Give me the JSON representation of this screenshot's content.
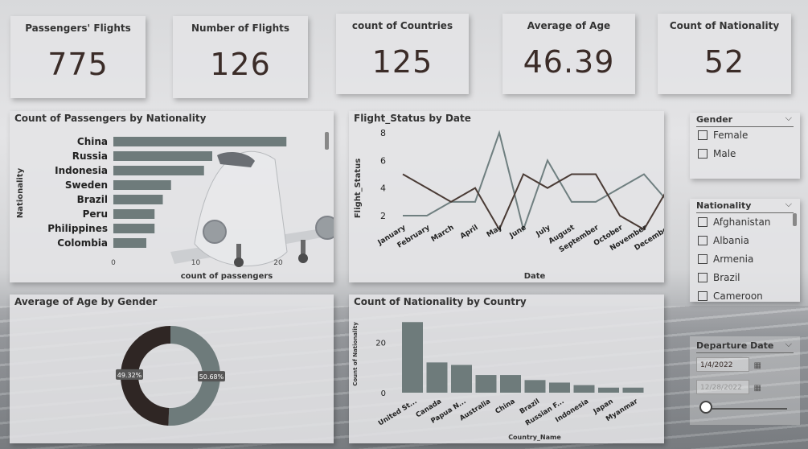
{
  "kpis": [
    {
      "title": "Passengers' Flights",
      "value": "775"
    },
    {
      "title": "Number of Flights",
      "value": "126"
    },
    {
      "title": "count of Countries",
      "value": "125"
    },
    {
      "title": "Average of Age",
      "value": "46.39"
    },
    {
      "title": "Count of Nationality",
      "value": "52"
    }
  ],
  "slicers": {
    "gender": {
      "title": "Gender",
      "options": [
        "Female",
        "Male"
      ]
    },
    "nationality": {
      "title": "Nationality",
      "options": [
        "Afghanistan",
        "Albania",
        "Armenia",
        "Brazil",
        "Cameroon"
      ]
    },
    "departure": {
      "title": "Departure Date",
      "start": "1/4/2022",
      "end": "12/28/2022"
    }
  },
  "chart_data": [
    {
      "type": "bar",
      "orientation": "horizontal",
      "title": "Count of Passengers by Nationality",
      "xlabel": "count of passengers",
      "ylabel": "Nationality",
      "categories": [
        "China",
        "Russia",
        "Indonesia",
        "Sweden",
        "Brazil",
        "Peru",
        "Philippines",
        "Colombia"
      ],
      "values": [
        21,
        12,
        11,
        7,
        6,
        5,
        5,
        4
      ],
      "xlim": [
        0,
        24
      ],
      "xticks": [
        "0",
        "10",
        "20"
      ],
      "color": "#6e7b7b"
    },
    {
      "type": "line",
      "title": "Flight_Status by Date",
      "xlabel": "Date",
      "ylabel": "Flight_Status",
      "x": [
        "January",
        "February",
        "March",
        "April",
        "May",
        "June",
        "July",
        "August",
        "September",
        "October",
        "November",
        "December"
      ],
      "ylim": [
        2,
        8
      ],
      "yticks": [
        "2",
        "4",
        "6",
        "8"
      ],
      "series": [
        {
          "color": "#6f7f80",
          "values": [
            2,
            2,
            3,
            3,
            8,
            1,
            6,
            3,
            3,
            4,
            5,
            3
          ]
        },
        {
          "color": "#4a3b35",
          "values": [
            5,
            4,
            3,
            4,
            1,
            5,
            4,
            5,
            5,
            2,
            1,
            4
          ]
        }
      ]
    },
    {
      "type": "pie",
      "title": "Average of Age by Gender",
      "labels": [
        "49.32%",
        "50.68%"
      ],
      "values": [
        49.32,
        50.68
      ],
      "colors": [
        "#2f2624",
        "#6e7b7b"
      ],
      "donut": true
    },
    {
      "type": "bar",
      "title": "Count of Nationality by Country",
      "xlabel": "Country_Name",
      "ylabel": "Count of Nationality",
      "categories": [
        "United St...",
        "Canada",
        "Papua N...",
        "Australia",
        "China",
        "Brazil",
        "Russian F...",
        "Indonesia",
        "Japan",
        "Myanmar"
      ],
      "values": [
        28,
        12,
        11,
        7,
        7,
        5,
        4,
        3,
        2,
        2
      ],
      "ylim": [
        0,
        30
      ],
      "yticks": [
        "0",
        "20"
      ],
      "color": "#6e7b7b"
    }
  ]
}
